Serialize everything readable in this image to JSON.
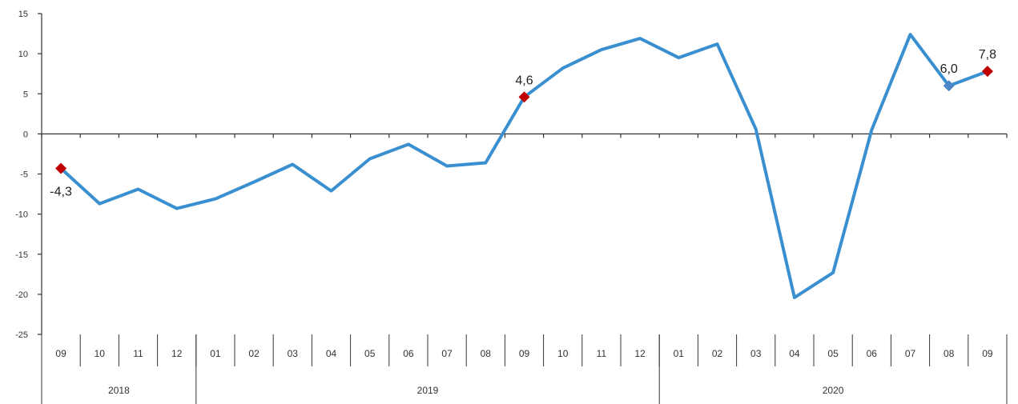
{
  "chart_data": {
    "type": "line",
    "title": "",
    "xlabel": "",
    "ylabel": "",
    "ylim": [
      -25,
      15
    ],
    "yticks": [
      15,
      10,
      5,
      0,
      -5,
      -10,
      -15,
      -20,
      -25
    ],
    "grid": false,
    "legend": "none",
    "categories": [
      "09",
      "10",
      "11",
      "12",
      "01",
      "02",
      "03",
      "04",
      "05",
      "06",
      "07",
      "08",
      "09",
      "10",
      "11",
      "12",
      "01",
      "02",
      "03",
      "04",
      "05",
      "06",
      "07",
      "08",
      "09"
    ],
    "years": [
      {
        "label": "2018",
        "start": 0,
        "end": 3
      },
      {
        "label": "2019",
        "start": 4,
        "end": 15
      },
      {
        "label": "2020",
        "start": 16,
        "end": 24
      }
    ],
    "series": [
      {
        "values": [
          -4.3,
          -8.7,
          -6.9,
          -9.3,
          -8.1,
          -6.0,
          -3.8,
          -7.1,
          -3.1,
          -1.3,
          -4.0,
          -3.6,
          4.6,
          8.2,
          10.5,
          11.9,
          9.5,
          11.2,
          0.6,
          -20.4,
          -17.3,
          0.5,
          12.4,
          6.0,
          7.8
        ]
      }
    ],
    "highlights": [
      {
        "index": 0,
        "label": "-4,3",
        "color": "#c00000",
        "position": "below"
      },
      {
        "index": 12,
        "label": "4,6",
        "color": "#c00000",
        "position": "above"
      },
      {
        "index": 23,
        "label": "6,0",
        "color": "#4a86c8",
        "position": "above"
      },
      {
        "index": 24,
        "label": "7,8",
        "color": "#c00000",
        "position": "above"
      }
    ],
    "colors": {
      "line": "#3a8fd0",
      "axis": "#333333"
    }
  }
}
